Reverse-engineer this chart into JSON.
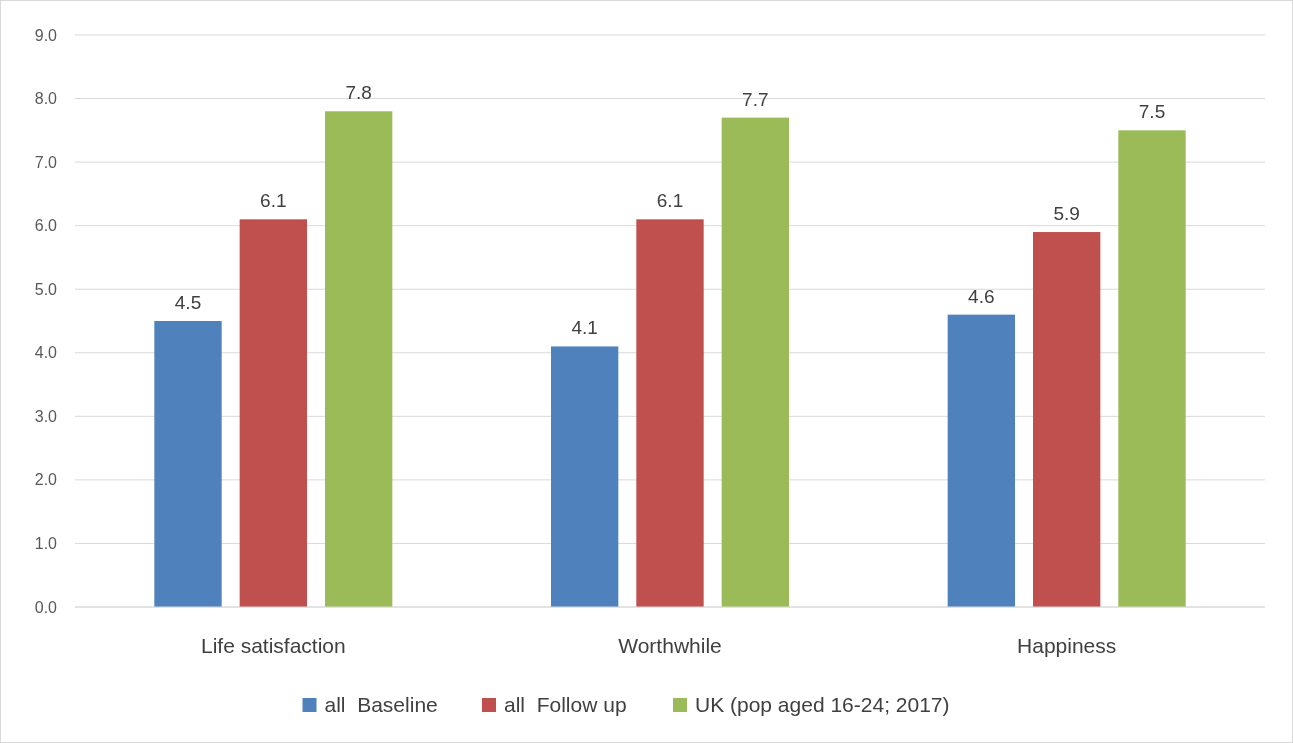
{
  "chart_data": {
    "type": "bar",
    "categories": [
      "Life satisfaction",
      "Worthwhile",
      "Happiness"
    ],
    "series": [
      {
        "name": "all  Baseline",
        "color": "#4f81bd",
        "values": [
          4.5,
          4.1,
          4.6
        ]
      },
      {
        "name": "all  Follow up",
        "color": "#c0504d",
        "values": [
          6.1,
          6.1,
          5.9
        ]
      },
      {
        "name": "UK (pop aged 16-24; 2017)",
        "color": "#9bbb59",
        "values": [
          7.8,
          7.7,
          7.5
        ]
      }
    ],
    "ylim": [
      0,
      9
    ],
    "yticks": [
      {
        "value": 0,
        "label": "0.0"
      },
      {
        "value": 1,
        "label": "1.0"
      },
      {
        "value": 2,
        "label": "2.0"
      },
      {
        "value": 3,
        "label": "3.0"
      },
      {
        "value": 4,
        "label": "4.0"
      },
      {
        "value": 5,
        "label": "5.0"
      },
      {
        "value": 6,
        "label": "6.0"
      },
      {
        "value": 7,
        "label": "7.0"
      },
      {
        "value": 8,
        "label": "8.0"
      },
      {
        "value": 9,
        "label": "9.0"
      }
    ],
    "grid": "y",
    "legend": "bottom",
    "data_labels": true
  }
}
